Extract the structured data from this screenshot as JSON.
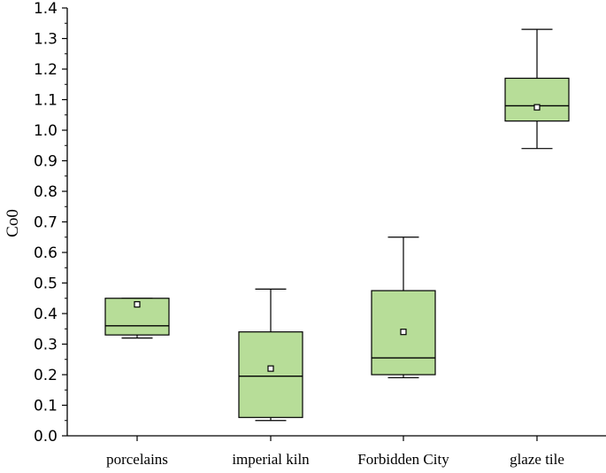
{
  "chart_data": {
    "type": "box",
    "ylabel": "Co0",
    "xlabel": "",
    "ylim": [
      0,
      1.4
    ],
    "yticks": [
      "0.0",
      "0.1",
      "0.2",
      "0.3",
      "0.4",
      "0.5",
      "0.6",
      "0.7",
      "0.8",
      "0.9",
      "1.0",
      "1.1",
      "1.2",
      "1.3",
      "1.4"
    ],
    "categories": [
      "porcelains",
      "imperial kiln",
      "Forbidden City",
      "glaze tile"
    ],
    "boxes": [
      {
        "category": "porcelains",
        "whisker_low": 0.32,
        "q1": 0.33,
        "median": 0.36,
        "q3": 0.45,
        "whisker_high": 0.45,
        "mean": 0.43
      },
      {
        "category": "imperial kiln",
        "whisker_low": 0.05,
        "q1": 0.06,
        "median": 0.195,
        "q3": 0.34,
        "whisker_high": 0.48,
        "mean": 0.22
      },
      {
        "category": "Forbidden City",
        "whisker_low": 0.19,
        "q1": 0.2,
        "median": 0.255,
        "q3": 0.475,
        "whisker_high": 0.65,
        "mean": 0.34
      },
      {
        "category": "glaze tile",
        "whisker_low": 0.94,
        "q1": 1.03,
        "median": 1.08,
        "q3": 1.17,
        "whisker_high": 1.33,
        "mean": 1.075
      }
    ],
    "colors": {
      "box_fill": "#b7dd98",
      "stroke": "#000000",
      "mean_marker_fill": "#ffffff"
    },
    "grid": false,
    "legend": "none"
  }
}
